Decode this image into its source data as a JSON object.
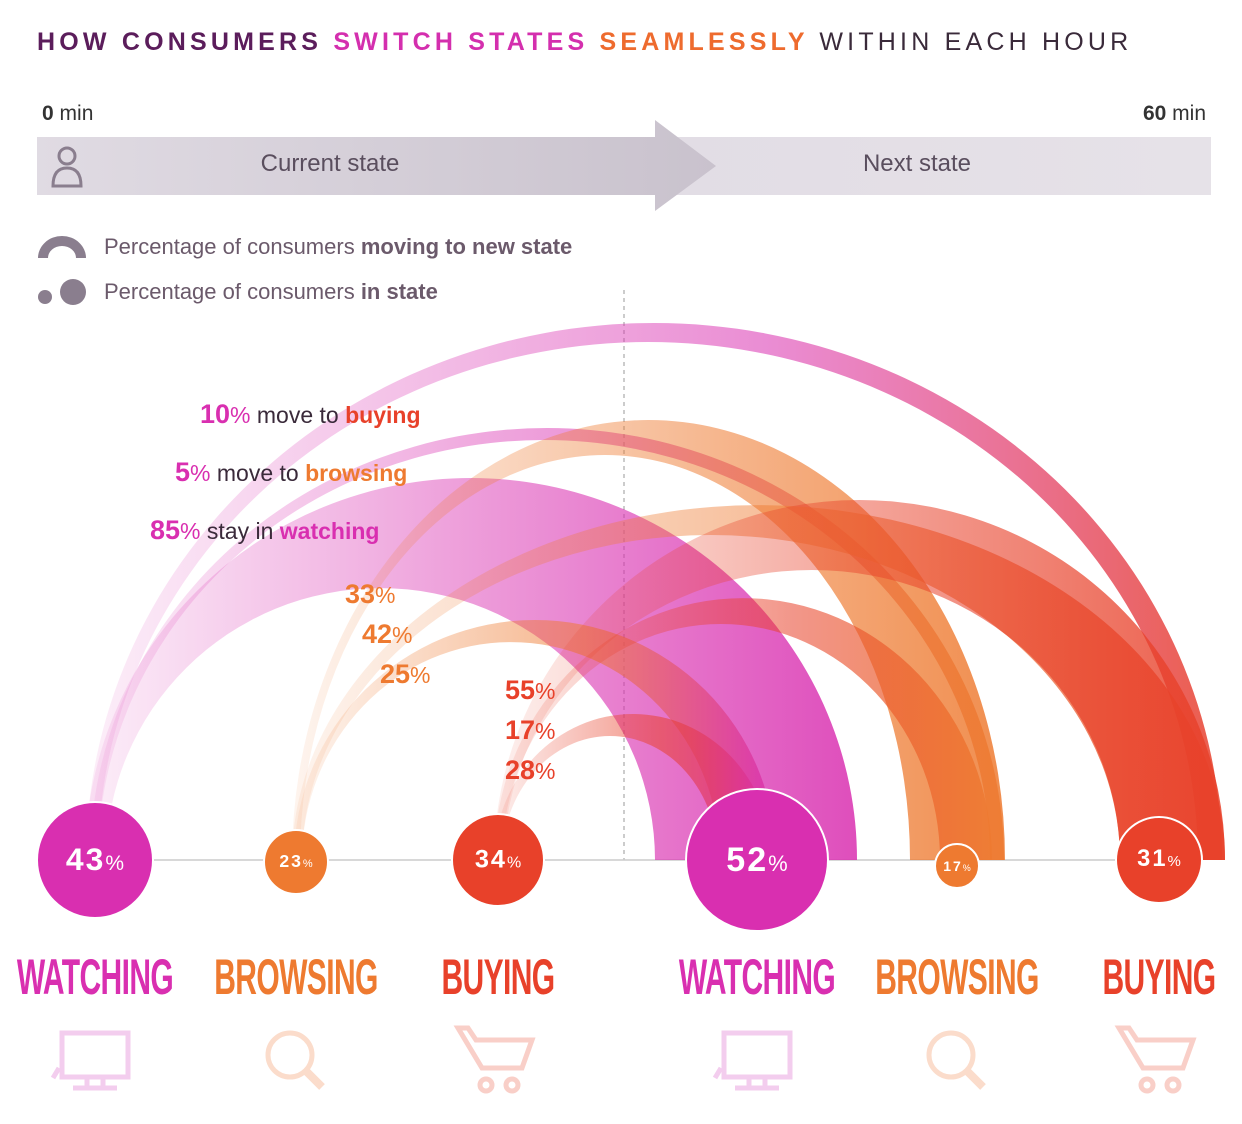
{
  "title": {
    "parts": [
      "HOW CONSUMERS ",
      "SWITCH STATES ",
      "SEAMLESSLY ",
      "WITHIN EACH HOUR"
    ],
    "colors": [
      "#5b1d5b",
      "#d42fae",
      "#ee6b2e",
      "#3a2a3a"
    ]
  },
  "timeline": {
    "start_value": "0",
    "start_unit": "min",
    "end_value": "60",
    "end_unit": "min",
    "current_label": "Current state",
    "next_label": "Next state",
    "icon": "person-icon"
  },
  "legend": [
    {
      "icon": "half-ring-icon",
      "text": "Percentage of consumers ",
      "bold": "moving to new state"
    },
    {
      "icon": "dots-icon",
      "text": "Percentage of consumers ",
      "bold": "in state"
    }
  ],
  "colors": {
    "watching": "#d92fb0",
    "browsing": "#ee7a30",
    "buying": "#e8412a",
    "text_dark": "#3a2a3a"
  },
  "states_current": [
    {
      "key": "watching",
      "label": "WATCHING",
      "value": "43",
      "unit": "%",
      "icon": "monitor-icon"
    },
    {
      "key": "browsing",
      "label": "BROWSING",
      "value": "23",
      "unit": "%",
      "icon": "magnifier-icon"
    },
    {
      "key": "buying",
      "label": "BUYING",
      "value": "34",
      "unit": "%",
      "icon": "cart-icon"
    }
  ],
  "states_next": [
    {
      "key": "watching",
      "label": "WATCHING",
      "value": "52",
      "unit": "%",
      "icon": "monitor-icon"
    },
    {
      "key": "browsing",
      "label": "BROWSING",
      "value": "17",
      "unit": "%",
      "icon": "magnifier-icon"
    },
    {
      "key": "buying",
      "label": "BUYING",
      "value": "31",
      "unit": "%",
      "icon": "cart-icon"
    }
  ],
  "flows": [
    {
      "from": "watching",
      "to": "buying",
      "value": "10",
      "unit": "%",
      "text": " move to ",
      "target_word": "buying"
    },
    {
      "from": "watching",
      "to": "browsing",
      "value": "5",
      "unit": "%",
      "text": " move to ",
      "target_word": "browsing"
    },
    {
      "from": "watching",
      "to": "watching",
      "value": "85",
      "unit": "%",
      "text": " stay in ",
      "target_word": "watching"
    },
    {
      "from": "browsing",
      "to": "browsing",
      "value": "33",
      "unit": "%",
      "text": "",
      "target_word": ""
    },
    {
      "from": "browsing",
      "to": "buying",
      "value": "42",
      "unit": "%",
      "text": "",
      "target_word": ""
    },
    {
      "from": "browsing",
      "to": "watching",
      "value": "25",
      "unit": "%",
      "text": "",
      "target_word": ""
    },
    {
      "from": "buying",
      "to": "buying",
      "value": "55",
      "unit": "%",
      "text": "",
      "target_word": ""
    },
    {
      "from": "buying",
      "to": "browsing",
      "value": "17",
      "unit": "%",
      "text": "",
      "target_word": ""
    },
    {
      "from": "buying",
      "to": "watching",
      "value": "28",
      "unit": "%",
      "text": "",
      "target_word": ""
    }
  ]
}
